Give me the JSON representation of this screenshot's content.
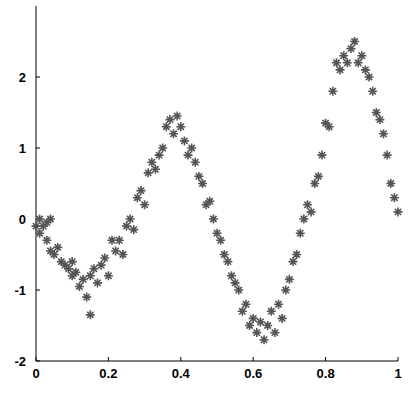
{
  "chart_data": {
    "type": "scatter",
    "marker": "star",
    "color": "#555555",
    "x": [
      0.0,
      0.01,
      0.01,
      0.02,
      0.03,
      0.03,
      0.04,
      0.04,
      0.05,
      0.06,
      0.07,
      0.08,
      0.09,
      0.1,
      0.1,
      0.11,
      0.12,
      0.13,
      0.14,
      0.15,
      0.15,
      0.16,
      0.17,
      0.18,
      0.19,
      0.2,
      0.21,
      0.22,
      0.23,
      0.24,
      0.25,
      0.26,
      0.27,
      0.28,
      0.29,
      0.3,
      0.31,
      0.32,
      0.33,
      0.34,
      0.35,
      0.36,
      0.37,
      0.38,
      0.39,
      0.4,
      0.41,
      0.42,
      0.43,
      0.44,
      0.45,
      0.46,
      0.47,
      0.48,
      0.49,
      0.5,
      0.51,
      0.52,
      0.53,
      0.54,
      0.55,
      0.56,
      0.57,
      0.58,
      0.59,
      0.6,
      0.61,
      0.62,
      0.63,
      0.64,
      0.65,
      0.66,
      0.67,
      0.68,
      0.69,
      0.7,
      0.71,
      0.72,
      0.73,
      0.74,
      0.75,
      0.76,
      0.77,
      0.78,
      0.79,
      0.8,
      0.81,
      0.82,
      0.83,
      0.84,
      0.85,
      0.86,
      0.87,
      0.88,
      0.89,
      0.9,
      0.91,
      0.92,
      0.93,
      0.94,
      0.95,
      0.96,
      0.97,
      0.98,
      0.99,
      1.0
    ],
    "values": [
      -0.1,
      -0.2,
      0.0,
      -0.1,
      -0.05,
      -0.3,
      0.0,
      -0.45,
      -0.5,
      -0.4,
      -0.6,
      -0.65,
      -0.7,
      -0.8,
      -0.6,
      -0.75,
      -0.95,
      -0.85,
      -1.1,
      -1.35,
      -0.8,
      -0.7,
      -0.9,
      -0.65,
      -0.55,
      -0.8,
      -0.3,
      -0.45,
      -0.3,
      -0.5,
      -0.1,
      0.0,
      -0.15,
      0.3,
      0.4,
      0.2,
      0.65,
      0.8,
      0.7,
      0.9,
      1.0,
      1.3,
      1.4,
      1.2,
      1.45,
      1.3,
      1.1,
      0.9,
      1.0,
      0.8,
      0.6,
      0.5,
      0.2,
      0.25,
      0.0,
      -0.2,
      -0.3,
      -0.5,
      -0.6,
      -0.8,
      -0.9,
      -1.0,
      -1.3,
      -1.2,
      -1.5,
      -1.4,
      -1.6,
      -1.45,
      -1.7,
      -1.5,
      -1.3,
      -1.6,
      -1.2,
      -1.4,
      -1.0,
      -0.85,
      -0.6,
      -0.5,
      -0.2,
      0.0,
      0.2,
      0.1,
      0.5,
      0.6,
      0.9,
      1.35,
      1.3,
      1.8,
      2.2,
      2.1,
      2.3,
      2.2,
      2.4,
      2.5,
      2.2,
      2.3,
      2.1,
      2.0,
      1.8,
      1.5,
      1.4,
      1.2,
      0.9,
      0.5,
      0.3,
      0.1
    ],
    "xlim": [
      0,
      1
    ],
    "xticks": [
      0,
      0.2,
      0.4,
      0.6,
      0.8,
      1
    ],
    "ylim": [
      -2,
      3
    ],
    "yticks": [
      -2,
      -1,
      0,
      1,
      2
    ]
  }
}
